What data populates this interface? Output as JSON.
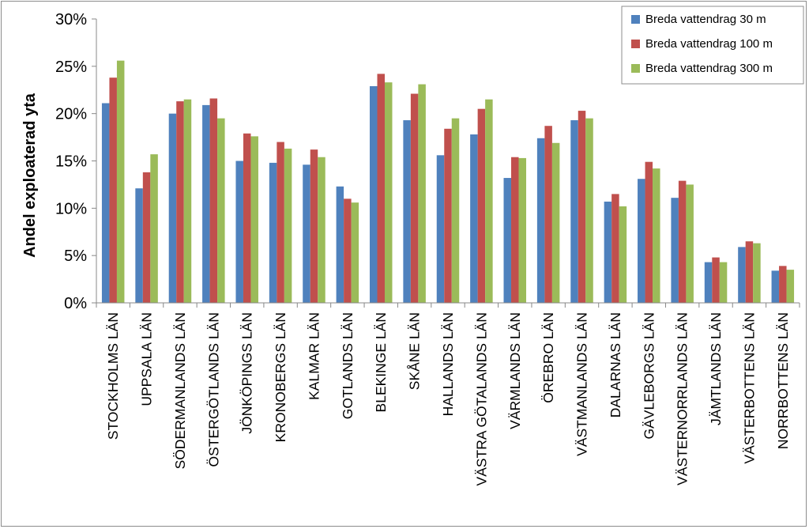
{
  "chart_data": {
    "type": "bar",
    "title": "",
    "xlabel": "",
    "ylabel": "Andel exploaterad yta",
    "ylim": [
      0,
      30
    ],
    "y_tick_labels": [
      "0%",
      "5%",
      "10%",
      "15%",
      "20%",
      "25%",
      "30%"
    ],
    "grid": false,
    "legend_position": "top-right",
    "categories": [
      "STOCKHOLMS LÄN",
      "UPPSALA LÄN",
      "SÖDERMANLANDS LÄN",
      "ÖSTERGÖTLANDS LÄN",
      "JÖNKÖPINGS LÄN",
      "KRONOBERGS LÄN",
      "KALMAR LÄN",
      "GOTLANDS LÄN",
      "BLEKINGE LÄN",
      "SKÅNE LÄN",
      "HALLANDS LÄN",
      "VÄSTRA GÖTALANDS LÄN",
      "VÄRMLANDS LÄN",
      "ÖREBRO LÄN",
      "VÄSTMANLANDS LÄN",
      "DALARNAS LÄN",
      "GÄVLEBORGS LÄN",
      "VÄSTERNORRLANDS LÄN",
      "JÄMTLANDS LÄN",
      "VÄSTERBOTTENS LÄN",
      "NORRBOTTENS LÄN"
    ],
    "series": [
      {
        "name": "Breda vattendrag 30 m",
        "color": "#4f81bd",
        "values": [
          21.1,
          12.1,
          20.0,
          20.9,
          15.0,
          14.8,
          14.6,
          12.3,
          22.9,
          19.3,
          15.6,
          17.8,
          13.2,
          17.4,
          19.3,
          10.7,
          13.1,
          11.1,
          4.3,
          5.9,
          3.4
        ]
      },
      {
        "name": "Breda vattendrag 100 m",
        "color": "#c0504d",
        "values": [
          23.8,
          13.8,
          21.3,
          21.6,
          17.9,
          17.0,
          16.2,
          11.0,
          24.2,
          22.1,
          18.4,
          20.5,
          15.4,
          18.7,
          20.3,
          11.5,
          14.9,
          12.9,
          4.8,
          6.5,
          3.9
        ]
      },
      {
        "name": "Breda vattendrag 300 m",
        "color": "#9bbb59",
        "values": [
          25.6,
          15.7,
          21.5,
          19.5,
          17.6,
          16.3,
          15.4,
          10.6,
          23.3,
          23.1,
          19.5,
          21.5,
          15.3,
          16.9,
          19.5,
          10.2,
          14.2,
          12.5,
          4.3,
          6.3,
          3.5
        ]
      }
    ]
  }
}
